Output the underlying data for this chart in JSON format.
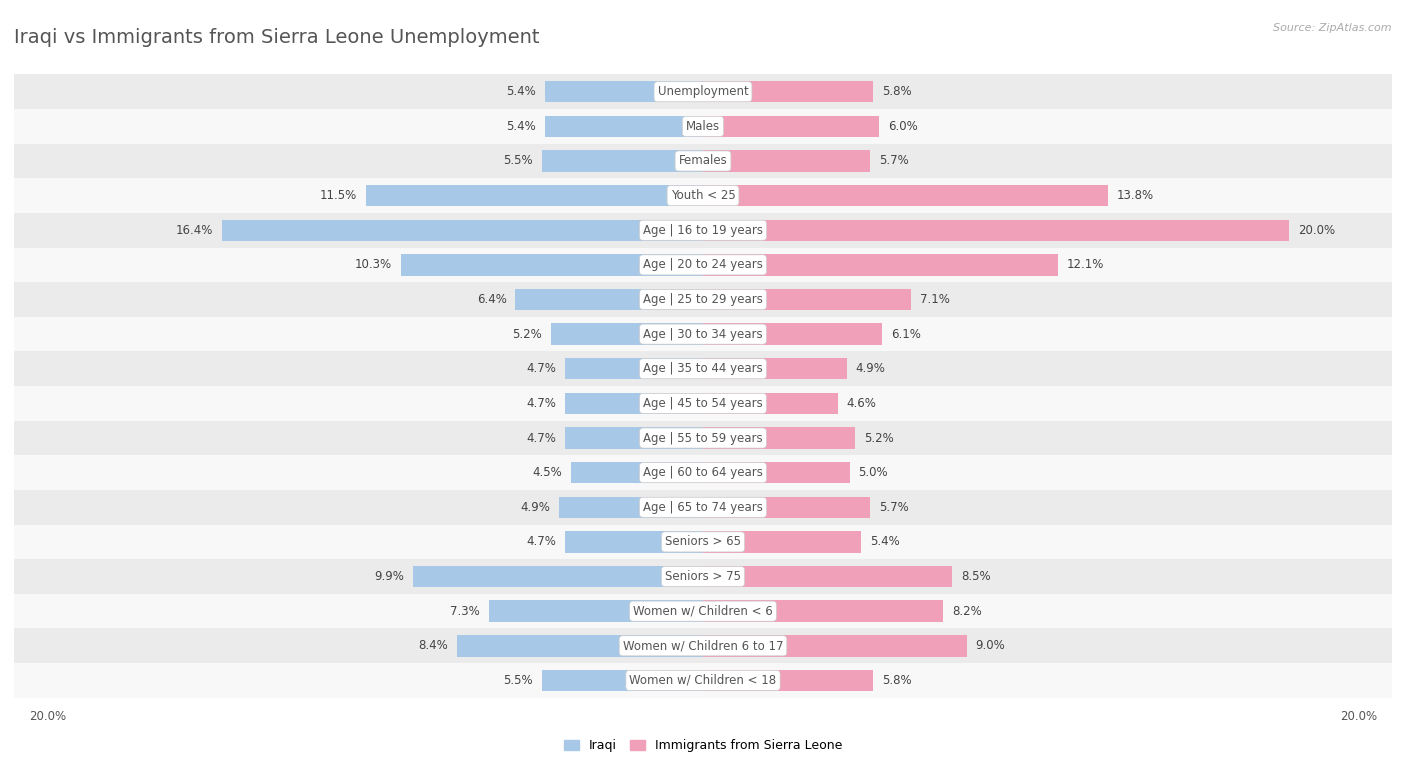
{
  "title": "Iraqi vs Immigrants from Sierra Leone Unemployment",
  "source": "Source: ZipAtlas.com",
  "categories": [
    "Unemployment",
    "Males",
    "Females",
    "Youth < 25",
    "Age | 16 to 19 years",
    "Age | 20 to 24 years",
    "Age | 25 to 29 years",
    "Age | 30 to 34 years",
    "Age | 35 to 44 years",
    "Age | 45 to 54 years",
    "Age | 55 to 59 years",
    "Age | 60 to 64 years",
    "Age | 65 to 74 years",
    "Seniors > 65",
    "Seniors > 75",
    "Women w/ Children < 6",
    "Women w/ Children 6 to 17",
    "Women w/ Children < 18"
  ],
  "iraqi": [
    5.4,
    5.4,
    5.5,
    11.5,
    16.4,
    10.3,
    6.4,
    5.2,
    4.7,
    4.7,
    4.7,
    4.5,
    4.9,
    4.7,
    9.9,
    7.3,
    8.4,
    5.5
  ],
  "sierra_leone": [
    5.8,
    6.0,
    5.7,
    13.8,
    20.0,
    12.1,
    7.1,
    6.1,
    4.9,
    4.6,
    5.2,
    5.0,
    5.7,
    5.4,
    8.5,
    8.2,
    9.0,
    5.8
  ],
  "iraqi_color": "#a8c8e8",
  "sierra_leone_color": "#f0a0b8",
  "row_bg_light": "#ebebeb",
  "row_bg_white": "#f8f8f8",
  "bar_height": 0.62,
  "max_value": 20.0,
  "legend_iraqi": "Iraqi",
  "legend_sierra": "Immigrants from Sierra Leone",
  "title_fontsize": 14,
  "label_fontsize": 8.5,
  "value_fontsize": 8.5
}
